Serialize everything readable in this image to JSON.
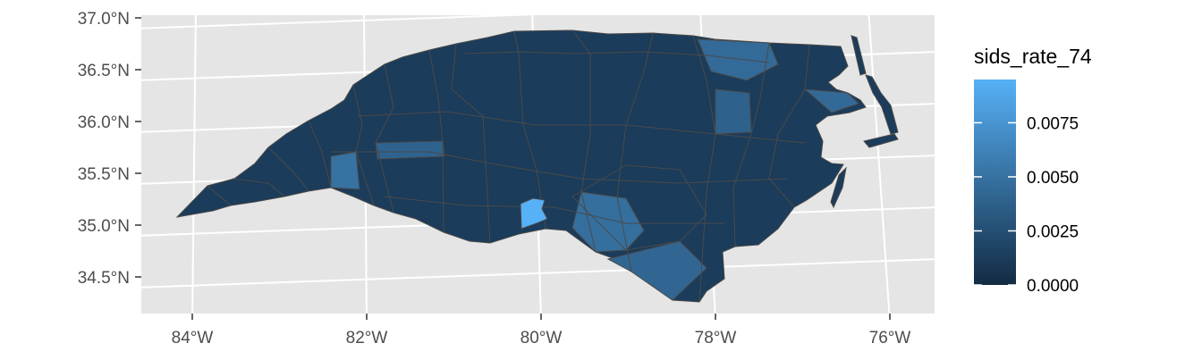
{
  "map": {
    "type": "choropleth",
    "region": "North Carolina counties",
    "fill_variable": "sids_rate_74",
    "panel_background": "#e5e5e5",
    "graticule_color": "#ffffff",
    "county_border_color": "#4a4a4a",
    "y_ticks": [
      {
        "value": 37.0,
        "label": "37.0°N"
      },
      {
        "value": 36.5,
        "label": "36.5°N"
      },
      {
        "value": 36.0,
        "label": "36.0°N"
      },
      {
        "value": 35.5,
        "label": "35.5°N"
      },
      {
        "value": 35.0,
        "label": "35.0°N"
      },
      {
        "value": 34.5,
        "label": "34.5°N"
      }
    ],
    "x_ticks": [
      {
        "value": -84,
        "label": "84°W"
      },
      {
        "value": -82,
        "label": "82°W"
      },
      {
        "value": -80,
        "label": "80°W"
      },
      {
        "value": -78,
        "label": "78°W"
      },
      {
        "value": -76,
        "label": "76°W"
      }
    ],
    "highlight": {
      "value": 0.0095
    }
  },
  "legend": {
    "title": "sids_rate_74",
    "color_low": "#132b43",
    "color_high": "#56b1f7",
    "range": [
      0,
      0.0095
    ],
    "ticks": [
      {
        "value": 0.0075,
        "label": "0.0075"
      },
      {
        "value": 0.005,
        "label": "0.0050"
      },
      {
        "value": 0.0025,
        "label": "0.0025"
      },
      {
        "value": 0.0,
        "label": "0.0000"
      }
    ]
  }
}
